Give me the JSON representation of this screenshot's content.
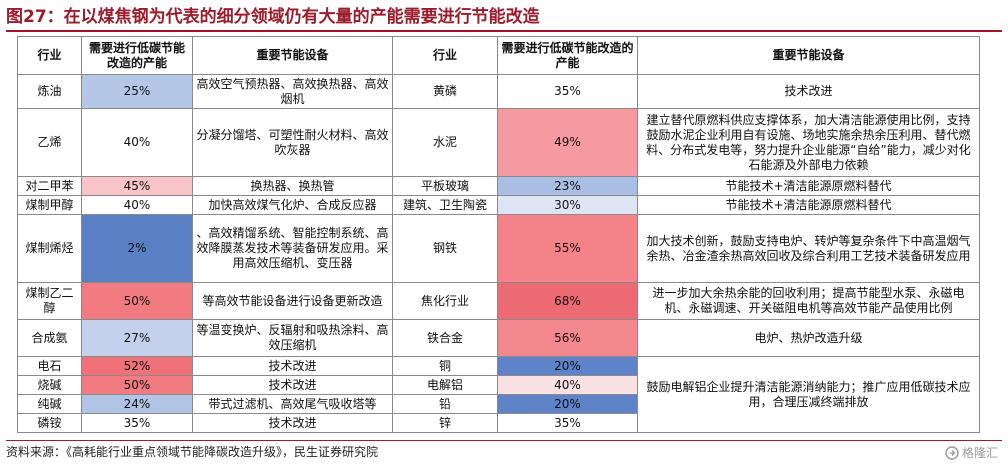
{
  "title": "图27：在以煤焦钢为代表的细分领域仍有大量的产能需要进行节能改造",
  "headers": {
    "industry": "行业",
    "capacity": "需要进行低碳节能改造的产能",
    "equipment": "重要节能设备"
  },
  "left_rows": [
    {
      "industry": "炼油",
      "pct": "25%",
      "color": "#b4c7e7",
      "equip": "高效空气预热器、高效换热器、高效烟机"
    },
    {
      "industry": "乙烯",
      "pct": "40%",
      "color": "#ffffff",
      "equip": "分凝分馏塔、可塑性耐火材料、高效吹灰器"
    },
    {
      "industry": "对二甲苯",
      "pct": "45%",
      "color": "#f8c4c8",
      "equip": "换热器、换热管"
    },
    {
      "industry": "煤制甲醇",
      "pct": "40%",
      "color": "#ffffff",
      "equip": "加快高效煤气化炉、合成反应器"
    },
    {
      "industry": "煤制烯烃",
      "pct": "2%",
      "color": "#5b7fc5",
      "equip": "、高效精馏系统、智能控制系统、高效降膜蒸发技术等装备研发应用。采用高效压缩机、变压器"
    },
    {
      "industry": "煤制乙二醇",
      "pct": "50%",
      "color": "#f17b81",
      "equip": "等高效节能设备进行设备更新改造"
    },
    {
      "industry": "合成氨",
      "pct": "27%",
      "color": "#c3d1ec",
      "equip": "等温变换炉、反辐射和吸热涂料、高效压缩机"
    },
    {
      "industry": "电石",
      "pct": "52%",
      "color": "#f0717a",
      "equip": "技术改进"
    },
    {
      "industry": "烧碱",
      "pct": "50%",
      "color": "#f17b81",
      "equip": "技术改进"
    },
    {
      "industry": "纯碱",
      "pct": "24%",
      "color": "#b1c4e6",
      "equip": "带式过滤机、高效尾气吸收塔等"
    },
    {
      "industry": "磷铵",
      "pct": "35%",
      "color": "#ffffff",
      "equip": "技术改进"
    }
  ],
  "right_rows": [
    {
      "industry": "黄磷",
      "pct": "35%",
      "color": "#ffffff",
      "equip": "技术改进"
    },
    {
      "industry": "水泥",
      "pct": "49%",
      "color": "#f59aa0",
      "equip": "建立替代原燃料供应支撑体系，加大清洁能源使用比例，支持鼓励水泥企业利用自有设施、场地实施余热余压利用、替代燃料、分布式发电等，努力提升企业能源“自给”能力，减少对化石能源及外部电力依赖"
    },
    {
      "industry": "平板玻璃",
      "pct": "23%",
      "color": "#a9bee3",
      "equip": "节能技术+清洁能源原燃料替代"
    },
    {
      "industry": "建筑、卫生陶瓷",
      "pct": "30%",
      "color": "#dde5f4",
      "equip": "节能技术+清洁能源原燃料替代"
    },
    {
      "industry": "钢铁",
      "pct": "55%",
      "color": "#f38289",
      "equip": "加大技术创新，鼓励支持电炉、转炉等复杂条件下中高温烟气余热、冶金渣余热高效回收及综合利用工艺技术装备研发应用"
    },
    {
      "industry": "焦化行业",
      "pct": "68%",
      "color": "#ec6a72",
      "equip": "进一步加大余热余能的回收利用；提高节能型水泵、永磁电机、永磁调速、开关磁阻电机等高效节能产品使用比例"
    },
    {
      "industry": "铁合金",
      "pct": "56%",
      "color": "#f3878e",
      "equip": "电炉、热炉改造升级"
    },
    {
      "industry": "铜",
      "pct": "20%",
      "color": "#5f83c8",
      "equip": ""
    },
    {
      "industry": "电解铝",
      "pct": "40%",
      "color": "#f9e1e3",
      "equip": ""
    },
    {
      "industry": "铅",
      "pct": "20%",
      "color": "#5f83c8",
      "equip": ""
    },
    {
      "industry": "锌",
      "pct": "35%",
      "color": "#ffffff",
      "equip": ""
    }
  ],
  "merged_equip": "鼓励电解铝企业提升清洁能源消纳能力；推广应用低碳技术应用，合理压减终端排放",
  "footer": "资料来源：《高耗能行业重点领域节能降碳改造升级》，民生证券研究院",
  "watermark": "格隆汇"
}
